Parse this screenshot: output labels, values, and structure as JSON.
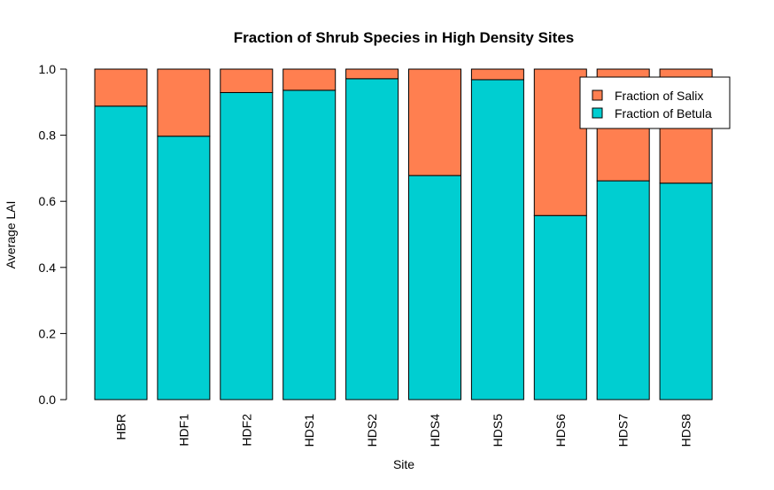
{
  "chart_data": {
    "type": "bar",
    "stacked": true,
    "title": "Fraction of Shrub Species in High Density Sites",
    "xlabel": "Site",
    "ylabel": "Average LAI",
    "ylim": [
      0,
      1
    ],
    "yticks": [
      "0.0",
      "0.2",
      "0.4",
      "0.6",
      "0.8",
      "1.0"
    ],
    "ytick_values": [
      0,
      0.2,
      0.4,
      0.6,
      0.8,
      1.0
    ],
    "categories": [
      "HBR",
      "HDF1",
      "HDF2",
      "HDS1",
      "HDS2",
      "HDS4",
      "HDS5",
      "HDS6",
      "HDS7",
      "HDS8"
    ],
    "series": [
      {
        "name": "Fraction of Betula",
        "color": "#00CED1",
        "values": [
          0.888,
          0.797,
          0.929,
          0.936,
          0.971,
          0.678,
          0.968,
          0.557,
          0.662,
          0.655
        ]
      },
      {
        "name": "Fraction of Salix",
        "color": "#FF7F50",
        "values": [
          0.112,
          0.203,
          0.071,
          0.064,
          0.029,
          0.322,
          0.032,
          0.443,
          0.338,
          0.345
        ]
      }
    ],
    "legend": {
      "position": "top-right",
      "entries": [
        "Fraction of Salix",
        "Fraction of Betula"
      ]
    },
    "grid": false
  }
}
